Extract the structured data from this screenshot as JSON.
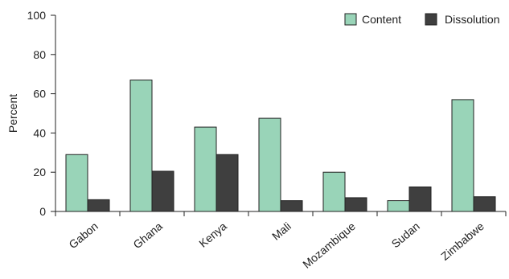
{
  "chart_data": {
    "type": "bar",
    "title": "",
    "xlabel": "",
    "ylabel": "Percent",
    "ylim": [
      0,
      100
    ],
    "yticks": [
      0,
      20,
      40,
      60,
      80,
      100
    ],
    "grid": false,
    "legend_position": "top-right",
    "categories": [
      "Gabon",
      "Ghana",
      "Kenya",
      "Mali",
      "Mozambique",
      "Sudan",
      "Zimbabwe"
    ],
    "series": [
      {
        "name": "Content",
        "color": "#99d4b8",
        "values": [
          29,
          67,
          43,
          47.5,
          20,
          5.5,
          57
        ]
      },
      {
        "name": "Dissolution",
        "color": "#3f3f3f",
        "values": [
          6,
          20.5,
          29,
          5.5,
          7,
          12.5,
          7.5
        ]
      }
    ]
  }
}
